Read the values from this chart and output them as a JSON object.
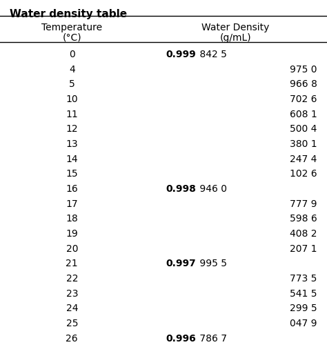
{
  "title": "Water density table",
  "col1_header": "Temperature",
  "col1_unit": "(°C)",
  "col2_header": "Water Density",
  "col2_unit": "(g/mL)",
  "temperatures": [
    "0",
    "4",
    "5",
    "10",
    "11",
    "12",
    "13",
    "14",
    "15",
    "16",
    "17",
    "18",
    "19",
    "20",
    "21",
    "22",
    "23",
    "24",
    "25",
    "26"
  ],
  "density_bold": [
    "0.999",
    "",
    "",
    "",
    "",
    "",
    "",
    "",
    "",
    "0.998",
    "",
    "",
    "",
    "",
    "0.997",
    "",
    "",
    "",
    "",
    "0.996"
  ],
  "density_normal": [
    "842 5",
    "975 0",
    "966 8",
    "702 6",
    "608 1",
    "500 4",
    "380 1",
    "247 4",
    "102 6",
    "946 0",
    "777 9",
    "598 6",
    "408 2",
    "207 1",
    "995 5",
    "773 5",
    "541 5",
    "299 5",
    "047 9",
    "786 7"
  ],
  "bg_color": "#ffffff",
  "text_color": "#000000",
  "title_fontsize": 11,
  "header_fontsize": 10,
  "data_fontsize": 10
}
